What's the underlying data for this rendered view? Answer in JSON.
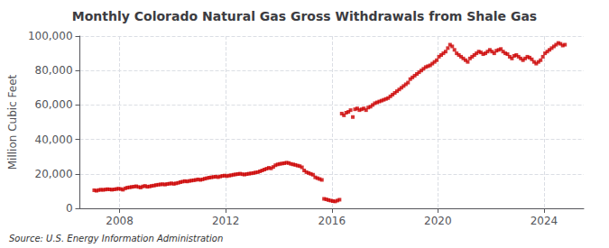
{
  "chart_data": {
    "type": "scatter",
    "title": "Monthly Colorado Natural Gas Gross Withdrawals from Shale Gas",
    "ylabel": "Million Cubic Feet",
    "annotation": "Source: U.S. Energy Information Administration",
    "color": "#cc0000",
    "marker": "square",
    "grid": true,
    "xlim": [
      2006.5,
      2025.5
    ],
    "xticks": [
      2008,
      2012,
      2016,
      2020,
      2024
    ],
    "ylim": [
      0,
      100000
    ],
    "yticks": [
      0,
      {
        "value": 20000,
        "label": "20,000"
      },
      {
        "value": 40000,
        "label": "40,000"
      },
      {
        "value": 60000,
        "label": "60,000"
      },
      {
        "value": 80000,
        "label": "80,000"
      },
      {
        "value": 100000,
        "label": "100,000"
      }
    ],
    "x": [
      2007.0417,
      2007.125,
      2007.2083,
      2007.2917,
      2007.375,
      2007.4583,
      2007.5417,
      2007.625,
      2007.7083,
      2007.7917,
      2007.875,
      2007.9583,
      2008.0417,
      2008.125,
      2008.2083,
      2008.2917,
      2008.375,
      2008.4583,
      2008.5417,
      2008.625,
      2008.7083,
      2008.7917,
      2008.875,
      2008.9583,
      2009.0417,
      2009.125,
      2009.2083,
      2009.2917,
      2009.375,
      2009.4583,
      2009.5417,
      2009.625,
      2009.7083,
      2009.7917,
      2009.875,
      2009.9583,
      2010.0417,
      2010.125,
      2010.2083,
      2010.2917,
      2010.375,
      2010.4583,
      2010.5417,
      2010.625,
      2010.7083,
      2010.7917,
      2010.875,
      2010.9583,
      2011.0417,
      2011.125,
      2011.2083,
      2011.2917,
      2011.375,
      2011.4583,
      2011.5417,
      2011.625,
      2011.7083,
      2011.7917,
      2011.875,
      2011.9583,
      2012.0417,
      2012.125,
      2012.2083,
      2012.2917,
      2012.375,
      2012.4583,
      2012.5417,
      2012.625,
      2012.7083,
      2012.7917,
      2012.875,
      2012.9583,
      2013.0417,
      2013.125,
      2013.2083,
      2013.2917,
      2013.375,
      2013.4583,
      2013.5417,
      2013.625,
      2013.7083,
      2013.7917,
      2013.875,
      2013.9583,
      2014.0417,
      2014.125,
      2014.2083,
      2014.2917,
      2014.375,
      2014.4583,
      2014.5417,
      2014.625,
      2014.7083,
      2014.7917,
      2014.875,
      2014.9583,
      2015.0417,
      2015.125,
      2015.2083,
      2015.2917,
      2015.375,
      2015.4583,
      2015.5417,
      2015.625,
      2015.7083,
      2015.7917,
      2015.875,
      2015.9583,
      2016.0417,
      2016.125,
      2016.2083,
      2016.2917,
      2016.375,
      2016.4583,
      2016.5417,
      2016.625,
      2016.7083,
      2016.7917,
      2016.875,
      2016.9583,
      2017.0417,
      2017.125,
      2017.2083,
      2017.2917,
      2017.375,
      2017.4583,
      2017.5417,
      2017.625,
      2017.7083,
      2017.7917,
      2017.875,
      2017.9583,
      2018.0417,
      2018.125,
      2018.2083,
      2018.2917,
      2018.375,
      2018.4583,
      2018.5417,
      2018.625,
      2018.7083,
      2018.7917,
      2018.875,
      2018.9583,
      2019.0417,
      2019.125,
      2019.2083,
      2019.2917,
      2019.375,
      2019.4583,
      2019.5417,
      2019.625,
      2019.7083,
      2019.7917,
      2019.875,
      2019.9583,
      2020.0417,
      2020.125,
      2020.2083,
      2020.2917,
      2020.375,
      2020.4583,
      2020.5417,
      2020.625,
      2020.7083,
      2020.7917,
      2020.875,
      2020.9583,
      2021.0417,
      2021.125,
      2021.2083,
      2021.2917,
      2021.375,
      2021.4583,
      2021.5417,
      2021.625,
      2021.7083,
      2021.7917,
      2021.875,
      2021.9583,
      2022.0417,
      2022.125,
      2022.2083,
      2022.2917,
      2022.375,
      2022.4583,
      2022.5417,
      2022.625,
      2022.7083,
      2022.7917,
      2022.875,
      2022.9583,
      2023.0417,
      2023.125,
      2023.2083,
      2023.2917,
      2023.375,
      2023.4583,
      2023.5417,
      2023.625,
      2023.7083,
      2023.7917,
      2023.875,
      2023.9583,
      2024.0417,
      2024.125,
      2024.2083,
      2024.2917,
      2024.375,
      2024.4583,
      2024.5417,
      2024.625,
      2024.7083,
      2024.7917
    ],
    "values": [
      10500,
      10200,
      10600,
      10800,
      10700,
      10900,
      11100,
      11000,
      10800,
      11000,
      11200,
      11400,
      11200,
      10800,
      11600,
      12000,
      12200,
      12400,
      12600,
      12800,
      12400,
      12100,
      12700,
      13000,
      12500,
      12700,
      13000,
      13200,
      13500,
      13700,
      13900,
      14000,
      13800,
      14100,
      14300,
      14500,
      14200,
      14500,
      14800,
      15200,
      15500,
      15800,
      15600,
      15900,
      16100,
      16300,
      16500,
      16800,
      16500,
      16800,
      17200,
      17500,
      17800,
      18000,
      18200,
      18400,
      18100,
      18500,
      18800,
      19000,
      18700,
      19000,
      19200,
      19500,
      19700,
      19900,
      20100,
      19800,
      19600,
      19900,
      20100,
      20300,
      20500,
      20800,
      21000,
      21500,
      22000,
      22500,
      23000,
      23500,
      23200,
      24000,
      25000,
      25500,
      25800,
      26000,
      26200,
      26500,
      26300,
      25800,
      25500,
      25200,
      24800,
      24500,
      23800,
      22000,
      21000,
      20500,
      20000,
      19500,
      18000,
      17500,
      17000,
      16500,
      5500,
      5200,
      4800,
      4500,
      4200,
      4000,
      4500,
      5000,
      55000,
      54000,
      55500,
      56000,
      57000,
      53000,
      57500,
      58000,
      57000,
      57500,
      58000,
      57000,
      58500,
      59000,
      60000,
      61000,
      61500,
      62000,
      62500,
      63000,
      63500,
      64000,
      65000,
      66000,
      67000,
      68000,
      69000,
      70000,
      71000,
      72000,
      73000,
      75000,
      76000,
      77000,
      78000,
      79000,
      80000,
      81000,
      82000,
      82500,
      83000,
      84000,
      85000,
      86000,
      88000,
      89000,
      90000,
      91000,
      93000,
      95000,
      94000,
      92000,
      90000,
      89000,
      88000,
      87000,
      86000,
      85000,
      87000,
      88000,
      89000,
      90000,
      91000,
      90500,
      89500,
      90000,
      91000,
      92000,
      91000,
      90000,
      91500,
      92000,
      92500,
      91000,
      90000,
      89500,
      88000,
      87000,
      88500,
      89000,
      88000,
      87000,
      86000,
      87000,
      88000,
      87500,
      86500,
      85000,
      84000,
      85000,
      86000,
      88000,
      90000,
      91000,
      92000,
      93000,
      94000,
      95000,
      96000,
      95500,
      94500,
      95000
    ]
  }
}
